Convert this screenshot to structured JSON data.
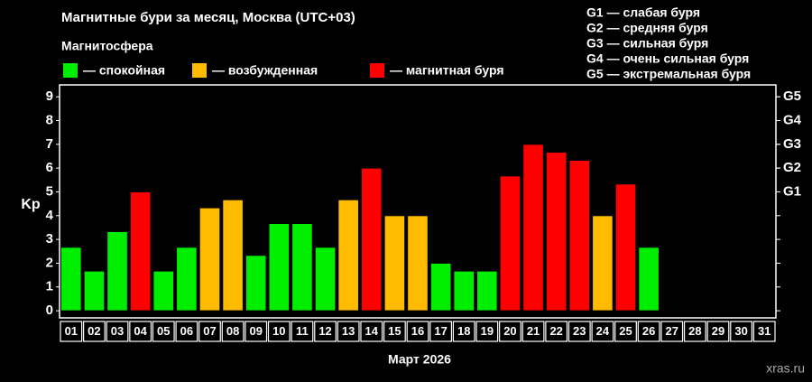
{
  "chart_data": {
    "type": "bar",
    "title": "Магнитные бури за месяц, Москва (UTC+03)",
    "subtitle": "Магнитосфера",
    "legend": [
      {
        "label": "— спокойная",
        "color": "#00ee00"
      },
      {
        "label": "— возбужденная",
        "color": "#ffbb00"
      },
      {
        "label": "— магнитная буря",
        "color": "#ff0000"
      }
    ],
    "scale_notes": [
      "G1 — слабая буря",
      "G2 — средняя буря",
      "G3 — сильная буря",
      "G4 — очень сильная буря",
      "G5 — экстремальная буря"
    ],
    "x_label": "Март 2026",
    "y_label": "Kp",
    "watermark": "xras.ru",
    "categories": [
      "01",
      "02",
      "03",
      "04",
      "05",
      "06",
      "07",
      "08",
      "09",
      "10",
      "11",
      "12",
      "13",
      "14",
      "15",
      "16",
      "17",
      "18",
      "19",
      "20",
      "21",
      "22",
      "23",
      "24",
      "25",
      "26",
      "27",
      "28",
      "29",
      "30",
      "31"
    ],
    "values": [
      2.67,
      1.67,
      3.33,
      5,
      1.67,
      2.67,
      4.33,
      4.67,
      2.33,
      3.67,
      3.67,
      2.67,
      4.67,
      6,
      4,
      4,
      2,
      1.67,
      1.67,
      5.67,
      7,
      6.67,
      6.33,
      4,
      5.33,
      2.67,
      null,
      null,
      null,
      null,
      null
    ],
    "colors": [
      "#00ee00",
      "#00ee00",
      "#00ee00",
      "#ff0000",
      "#00ee00",
      "#00ee00",
      "#ffbb00",
      "#ffbb00",
      "#00ee00",
      "#00ee00",
      "#00ee00",
      "#00ee00",
      "#ffbb00",
      "#ff0000",
      "#ffbb00",
      "#ffbb00",
      "#00ee00",
      "#00ee00",
      "#00ee00",
      "#ff0000",
      "#ff0000",
      "#ff0000",
      "#ff0000",
      "#ffbb00",
      "#ff0000",
      "#00ee00",
      null,
      null,
      null,
      null,
      null
    ],
    "ylim": [
      -0.3,
      9.5
    ],
    "yticks": [
      0,
      1,
      2,
      3,
      4,
      5,
      6,
      7,
      8,
      9
    ],
    "y2lim": [
      -0.3,
      9.5
    ],
    "y2ticks": [
      {
        "value": 5,
        "label": "G1"
      },
      {
        "value": 6,
        "label": "G2"
      },
      {
        "value": 7,
        "label": "G3"
      },
      {
        "value": 8,
        "label": "G4"
      },
      {
        "value": 9,
        "label": "G5"
      }
    ]
  }
}
